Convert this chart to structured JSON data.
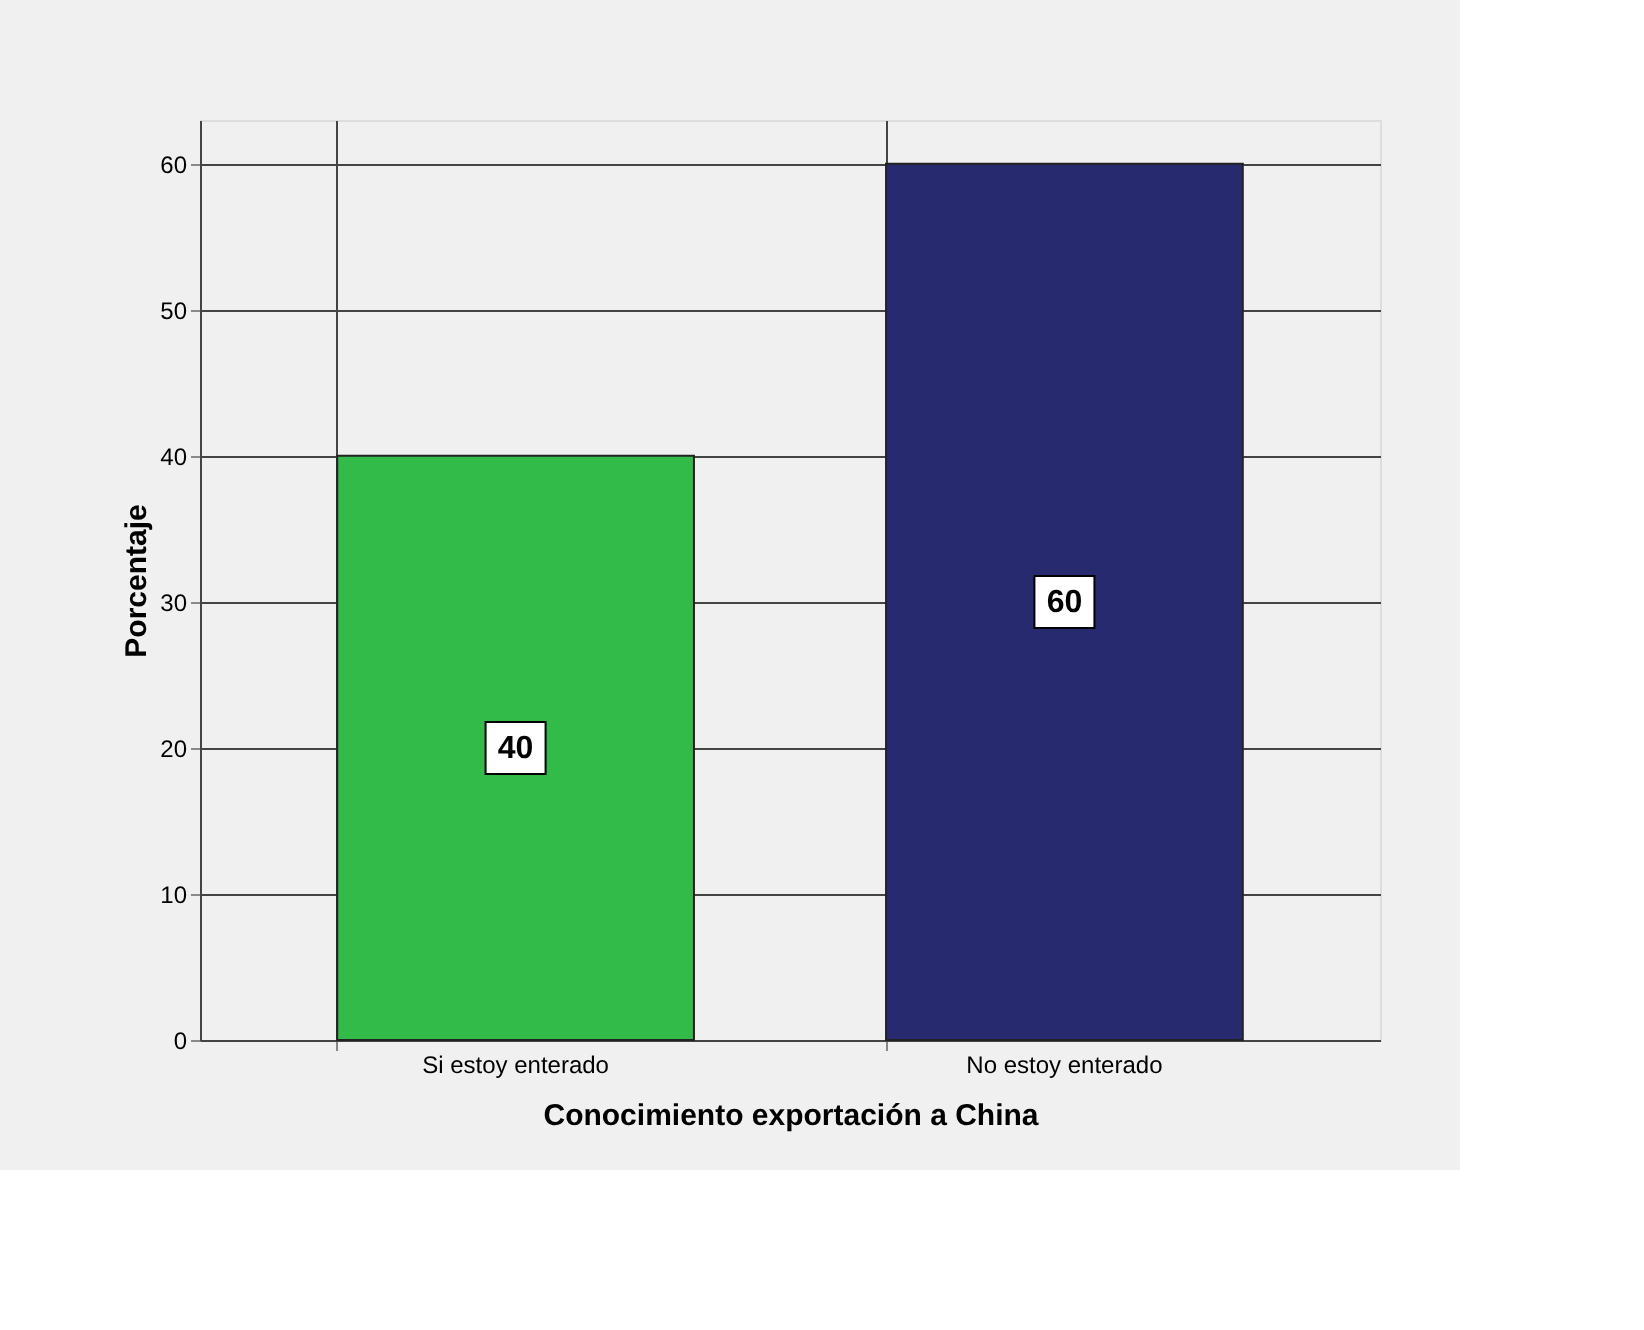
{
  "chart_data": {
    "type": "bar",
    "categories": [
      "Si estoy enterado",
      "No estoy enterado"
    ],
    "values": [
      40,
      60
    ],
    "colors": [
      "#33bb4a",
      "#282a70"
    ],
    "xlabel": "Conocimiento exportación a China",
    "ylabel": "Porcentaje",
    "ylim": [
      0,
      63
    ],
    "yticks": [
      0,
      10,
      20,
      30,
      40,
      50,
      60
    ],
    "grid": true,
    "data_labels": true
  }
}
